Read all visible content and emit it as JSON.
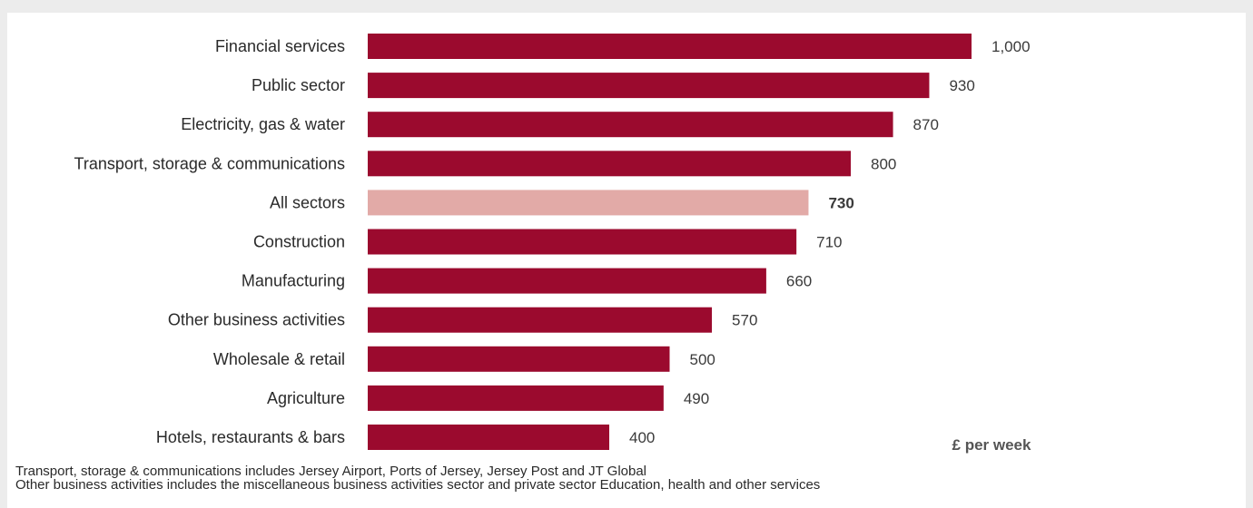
{
  "chart_data": {
    "type": "bar",
    "orientation": "horizontal",
    "categories": [
      "Financial services",
      "Public sector",
      "Electricity, gas & water",
      "Transport, storage & communications",
      "All sectors",
      "Construction",
      "Manufacturing",
      "Other business activities",
      "Wholesale & retail",
      "Agriculture",
      "Hotels, restaurants & bars"
    ],
    "values": [
      1000,
      930,
      870,
      800,
      730,
      710,
      660,
      570,
      500,
      490,
      400
    ],
    "value_labels": [
      "1,000",
      "930",
      "870",
      "800",
      "730",
      "710",
      "660",
      "570",
      "500",
      "490",
      "400"
    ],
    "highlight_index": 4,
    "xlim": [
      0,
      1000
    ],
    "unit_label": "£ per week",
    "grid": false,
    "colors": {
      "bar": "#9b0a2e",
      "highlight": "#e2aaa7"
    }
  },
  "footnotes": [
    "Transport, storage & communications includes Jersey Airport, Ports of Jersey, Jersey Post and JT Global",
    "Other business activities includes the miscellaneous business activities sector and private sector Education, health and other services"
  ]
}
